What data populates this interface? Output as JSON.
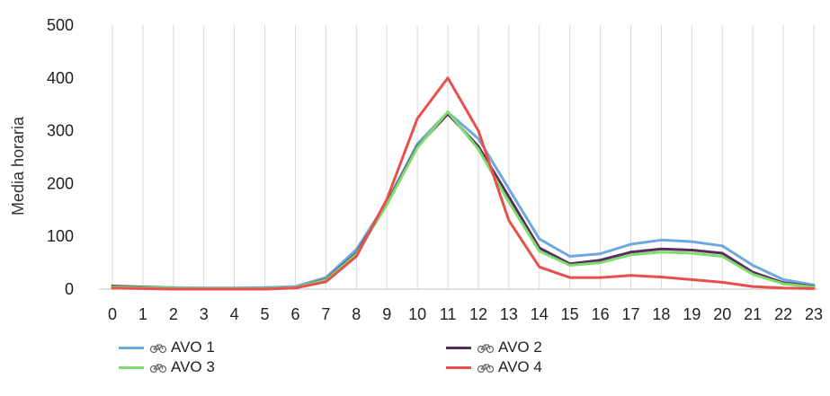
{
  "chart_data": {
    "type": "line",
    "title": "",
    "xlabel": "",
    "ylabel": "Media horaria",
    "x": [
      0,
      1,
      2,
      3,
      4,
      5,
      6,
      7,
      8,
      9,
      10,
      11,
      12,
      13,
      14,
      15,
      16,
      17,
      18,
      19,
      20,
      21,
      22,
      23
    ],
    "x_tick_labels": [
      "0",
      "1",
      "2",
      "3",
      "4",
      "5",
      "6",
      "7",
      "8",
      "9",
      "10",
      "11",
      "12",
      "13",
      "14",
      "15",
      "16",
      "17",
      "18",
      "19",
      "20",
      "21",
      "22",
      "23"
    ],
    "ylim": [
      0,
      500
    ],
    "y_ticks": [
      0,
      100,
      200,
      300,
      400,
      500
    ],
    "y_tick_labels": [
      "0",
      "100",
      "200",
      "300",
      "400",
      "500"
    ],
    "grid": "vertical",
    "legend_position": "bottom",
    "series": [
      {
        "name": "AVO 1",
        "color": "#6fa8dc",
        "values": [
          5,
          4,
          3,
          2,
          2,
          3,
          5,
          22,
          75,
          165,
          275,
          335,
          285,
          190,
          95,
          62,
          67,
          85,
          93,
          90,
          82,
          45,
          18,
          8
        ]
      },
      {
        "name": "AVO 2",
        "color": "#5b2a5e",
        "values": [
          6,
          4,
          2,
          1,
          1,
          1,
          3,
          18,
          68,
          162,
          270,
          332,
          270,
          175,
          78,
          48,
          55,
          70,
          76,
          74,
          68,
          32,
          12,
          5
        ]
      },
      {
        "name": "AVO 3",
        "color": "#7edc6a",
        "values": [
          4,
          3,
          2,
          1,
          1,
          1,
          3,
          17,
          66,
          160,
          268,
          336,
          265,
          165,
          72,
          45,
          50,
          65,
          70,
          68,
          62,
          28,
          10,
          4
        ]
      },
      {
        "name": "AVO 4",
        "color": "#e8504e",
        "values": [
          2,
          1,
          0,
          0,
          0,
          0,
          2,
          14,
          62,
          170,
          323,
          400,
          300,
          130,
          42,
          22,
          22,
          26,
          23,
          18,
          13,
          5,
          2,
          1
        ]
      }
    ]
  },
  "legend": {
    "icon": "bicycle-icon",
    "items": [
      {
        "label": "AVO 1",
        "color": "#6fa8dc"
      },
      {
        "label": "AVO 2",
        "color": "#5b2a5e"
      },
      {
        "label": "AVO 3",
        "color": "#7edc6a"
      },
      {
        "label": "AVO 4",
        "color": "#e8504e"
      }
    ]
  }
}
